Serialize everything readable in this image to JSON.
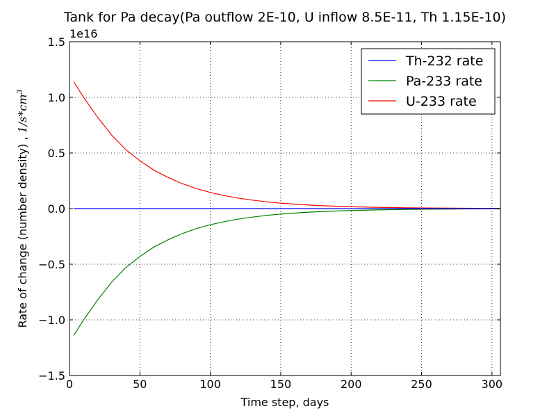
{
  "chart_data": {
    "type": "line",
    "title": "Tank for Pa decay(Pa outflow 2E-10, U inflow 8.5E-11, Th 1.15E-10)",
    "xlabel": "Time step, days",
    "ylabel_text": "Rate of change (number density) , ",
    "ylabel_math": "1/s*cm",
    "ylabel_math_sup": "3",
    "y_multiplier": "1e16",
    "xlim": [
      0,
      306
    ],
    "ylim": [
      -1.5,
      1.5
    ],
    "x_ticks": [
      0,
      50,
      100,
      150,
      200,
      250,
      300
    ],
    "x_tick_labels": [
      "0",
      "50",
      "100",
      "150",
      "200",
      "250",
      "300"
    ],
    "y_ticks": [
      -1.5,
      -1.0,
      -0.5,
      0.0,
      0.5,
      1.0,
      1.5
    ],
    "y_tick_labels": [
      "−1.5",
      "−1.0",
      "−0.5",
      "0.0",
      "0.5",
      "1.0",
      "1.5"
    ],
    "grid": true,
    "legend_position": "top-right",
    "series": [
      {
        "name": "Th-232 rate",
        "color": "#0000ff",
        "x": [
          3,
          306
        ],
        "y": [
          0.0,
          0.0
        ]
      },
      {
        "name": "Pa-233 rate",
        "color": "#008000",
        "x": [
          3,
          10,
          20,
          30,
          40,
          50,
          60,
          70,
          80,
          90,
          100,
          110,
          120,
          130,
          140,
          150,
          160,
          170,
          180,
          190,
          200,
          220,
          240,
          260,
          280,
          306
        ],
        "y": [
          -1.14,
          -1.0,
          -0.82,
          -0.66,
          -0.53,
          -0.43,
          -0.345,
          -0.28,
          -0.225,
          -0.18,
          -0.145,
          -0.117,
          -0.094,
          -0.076,
          -0.061,
          -0.049,
          -0.04,
          -0.032,
          -0.026,
          -0.021,
          -0.017,
          -0.011,
          -0.007,
          -0.005,
          -0.003,
          -0.002
        ]
      },
      {
        "name": "U-233 rate",
        "color": "#ff0000",
        "x": [
          3,
          10,
          20,
          30,
          40,
          50,
          60,
          70,
          80,
          90,
          100,
          110,
          120,
          130,
          140,
          150,
          160,
          170,
          180,
          190,
          200,
          220,
          240,
          260,
          280,
          306
        ],
        "y": [
          1.14,
          1.0,
          0.82,
          0.66,
          0.53,
          0.43,
          0.345,
          0.28,
          0.225,
          0.18,
          0.145,
          0.117,
          0.094,
          0.076,
          0.061,
          0.049,
          0.04,
          0.032,
          0.026,
          0.021,
          0.017,
          0.011,
          0.007,
          0.005,
          0.003,
          0.002
        ]
      }
    ]
  }
}
